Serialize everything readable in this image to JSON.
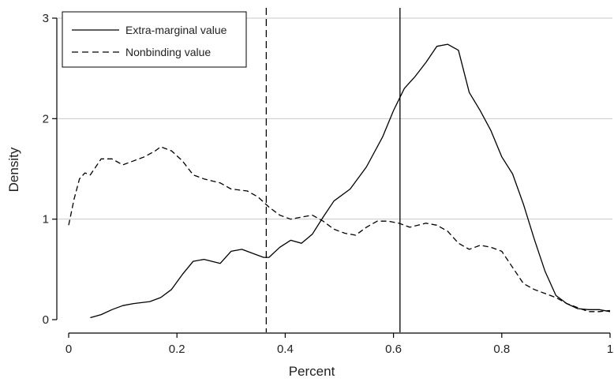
{
  "chart_data": {
    "type": "line",
    "xlabel": "Percent",
    "ylabel": "Density",
    "xlim": [
      0,
      1
    ],
    "ylim": [
      0,
      3
    ],
    "x_ticks": [
      "0",
      "0.2",
      "0.4",
      "0.6",
      "0.8",
      "1"
    ],
    "x_tick_values": [
      0,
      0.2,
      0.4,
      0.6,
      0.8,
      1
    ],
    "y_ticks": [
      "0",
      "1",
      "2",
      "3"
    ],
    "y_tick_values": [
      0,
      1,
      2,
      3
    ],
    "grid": "horizontal",
    "legend_position": "top-left",
    "colors": {
      "line": "#000000",
      "grid": "#c8c8c8",
      "axis": "#000000"
    },
    "series": [
      {
        "name": "Extra-marginal value",
        "style": "solid",
        "x": [
          0.04,
          0.06,
          0.08,
          0.1,
          0.12,
          0.15,
          0.17,
          0.19,
          0.21,
          0.23,
          0.25,
          0.28,
          0.3,
          0.32,
          0.34,
          0.36,
          0.37,
          0.39,
          0.41,
          0.43,
          0.45,
          0.47,
          0.49,
          0.52,
          0.55,
          0.58,
          0.6,
          0.62,
          0.64,
          0.66,
          0.68,
          0.7,
          0.72,
          0.74,
          0.76,
          0.78,
          0.8,
          0.82,
          0.84,
          0.86,
          0.88,
          0.9,
          0.92,
          0.94,
          0.96,
          0.98,
          1.0
        ],
        "y": [
          0.02,
          0.05,
          0.1,
          0.14,
          0.16,
          0.18,
          0.22,
          0.3,
          0.45,
          0.58,
          0.6,
          0.56,
          0.68,
          0.7,
          0.66,
          0.62,
          0.62,
          0.72,
          0.79,
          0.76,
          0.85,
          1.02,
          1.18,
          1.3,
          1.52,
          1.82,
          2.08,
          2.3,
          2.42,
          2.56,
          2.72,
          2.74,
          2.68,
          2.26,
          2.08,
          1.88,
          1.62,
          1.45,
          1.15,
          0.8,
          0.48,
          0.24,
          0.16,
          0.11,
          0.1,
          0.1,
          0.08
        ]
      },
      {
        "name": "Nonbinding value",
        "style": "dashed",
        "x": [
          0.0,
          0.01,
          0.02,
          0.03,
          0.04,
          0.05,
          0.06,
          0.08,
          0.1,
          0.12,
          0.14,
          0.16,
          0.17,
          0.19,
          0.21,
          0.23,
          0.25,
          0.28,
          0.3,
          0.33,
          0.35,
          0.37,
          0.39,
          0.41,
          0.43,
          0.45,
          0.47,
          0.49,
          0.51,
          0.53,
          0.55,
          0.57,
          0.59,
          0.61,
          0.63,
          0.66,
          0.68,
          0.7,
          0.72,
          0.74,
          0.76,
          0.78,
          0.8,
          0.82,
          0.84,
          0.86,
          0.88,
          0.9,
          0.92,
          0.94,
          0.96,
          0.98,
          1.0
        ],
        "y": [
          0.94,
          1.2,
          1.4,
          1.46,
          1.44,
          1.52,
          1.6,
          1.6,
          1.54,
          1.58,
          1.62,
          1.68,
          1.72,
          1.68,
          1.58,
          1.44,
          1.4,
          1.36,
          1.3,
          1.28,
          1.22,
          1.12,
          1.04,
          1.0,
          1.02,
          1.04,
          0.98,
          0.9,
          0.86,
          0.84,
          0.92,
          0.98,
          0.98,
          0.96,
          0.92,
          0.96,
          0.94,
          0.88,
          0.76,
          0.7,
          0.74,
          0.72,
          0.68,
          0.52,
          0.36,
          0.3,
          0.26,
          0.22,
          0.16,
          0.12,
          0.08,
          0.08,
          0.09
        ]
      }
    ],
    "vertical_lines": [
      {
        "x": 0.365,
        "style": "dashed"
      },
      {
        "x": 0.612,
        "style": "solid"
      }
    ]
  }
}
